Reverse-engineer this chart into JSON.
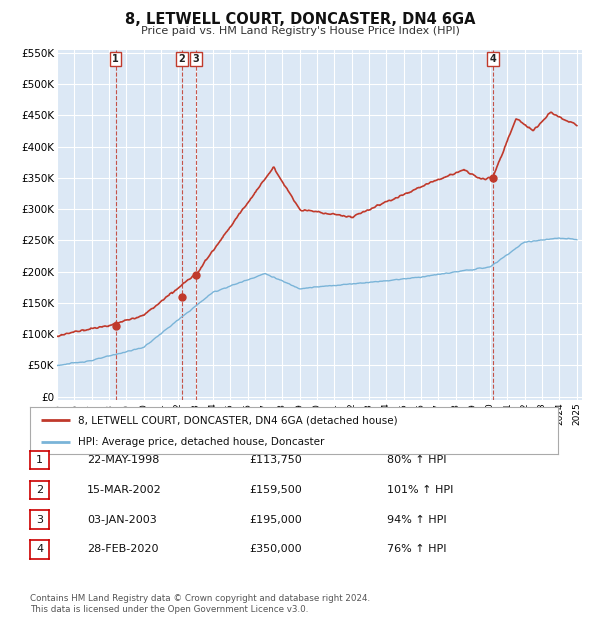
{
  "title": "8, LETWELL COURT, DONCASTER, DN4 6GA",
  "subtitle": "Price paid vs. HM Land Registry's House Price Index (HPI)",
  "hpi_color": "#7ab4d8",
  "price_color": "#c0392b",
  "background_color": "#dce8f5",
  "grid_color": "#ffffff",
  "sale_points": [
    {
      "num": 1,
      "year": 1998.38,
      "price": 113750
    },
    {
      "num": 2,
      "year": 2002.2,
      "price": 159500
    },
    {
      "num": 3,
      "year": 2003.01,
      "price": 195000
    },
    {
      "num": 4,
      "year": 2020.16,
      "price": 350000
    }
  ],
  "legend_label_red": "8, LETWELL COURT, DONCASTER, DN4 6GA (detached house)",
  "legend_label_blue": "HPI: Average price, detached house, Doncaster",
  "table_rows": [
    {
      "num": "1",
      "date": "22-MAY-1998",
      "price": "£113,750",
      "pct": "80% ↑ HPI"
    },
    {
      "num": "2",
      "date": "15-MAR-2002",
      "price": "£159,500",
      "pct": "101% ↑ HPI"
    },
    {
      "num": "3",
      "date": "03-JAN-2003",
      "price": "£195,000",
      "pct": "94% ↑ HPI"
    },
    {
      "num": "4",
      "date": "28-FEB-2020",
      "price": "£350,000",
      "pct": "76% ↑ HPI"
    }
  ],
  "footnote1": "Contains HM Land Registry data © Crown copyright and database right 2024.",
  "footnote2": "This data is licensed under the Open Government Licence v3.0.",
  "y_ticks": [
    0,
    50000,
    100000,
    150000,
    200000,
    250000,
    300000,
    350000,
    400000,
    450000,
    500000,
    550000
  ],
  "y_labels": [
    "£0",
    "£50K",
    "£100K",
    "£150K",
    "£200K",
    "£250K",
    "£300K",
    "£350K",
    "£400K",
    "£450K",
    "£500K",
    "£550K"
  ]
}
